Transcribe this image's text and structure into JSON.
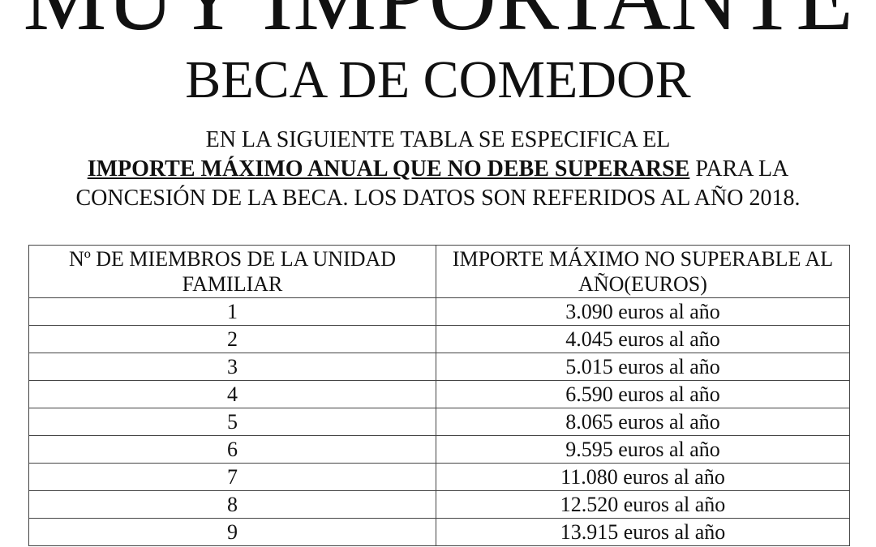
{
  "title": "MUY IMPORTANTE",
  "subtitle": "BECA DE COMEDOR",
  "paragraph": {
    "line1": "EN LA SIGUIENTE TABLA SE ESPECIFICA EL",
    "line2_emphasis": "IMPORTE MÁXIMO ANUAL QUE NO DEBE SUPERARSE",
    "line2_rest": " PARA LA",
    "line3": "CONCESIÓN DE LA BECA. LOS DATOS SON REFERIDOS AL AÑO 2018."
  },
  "table": {
    "headers": [
      "Nº DE MIEMBROS DE LA UNIDAD FAMILIAR",
      "IMPORTE MÁXIMO NO SUPERABLE AL AÑO(EUROS)"
    ],
    "rows": [
      {
        "members": "1",
        "amount": "3.090 euros al año"
      },
      {
        "members": "2",
        "amount": "4.045 euros al año"
      },
      {
        "members": "3",
        "amount": "5.015 euros al año"
      },
      {
        "members": "4",
        "amount": "6.590 euros al año"
      },
      {
        "members": "5",
        "amount": "8.065 euros al año"
      },
      {
        "members": "6",
        "amount": "9.595 euros al año"
      },
      {
        "members": "7",
        "amount": "11.080 euros al año"
      },
      {
        "members": "8",
        "amount": "12.520 euros al año"
      },
      {
        "members": "9",
        "amount": "13.915 euros al año"
      }
    ]
  }
}
